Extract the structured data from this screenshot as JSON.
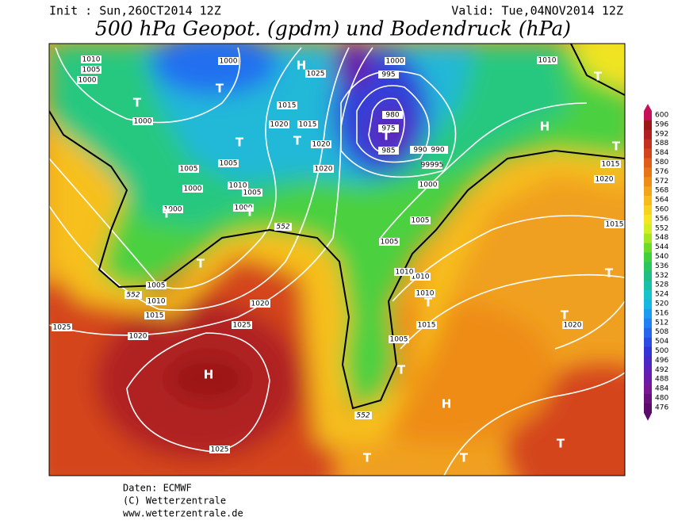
{
  "header": {
    "init": "Init : Sun,26OCT2014 12Z",
    "valid": "Valid: Tue,04NOV2014 12Z"
  },
  "title": "500 hPa Geopot. (gpdm) und Bodendruck (hPa)",
  "colorbar": {
    "levels": [
      600,
      596,
      592,
      588,
      584,
      580,
      576,
      572,
      568,
      564,
      560,
      556,
      552,
      548,
      544,
      540,
      536,
      532,
      528,
      524,
      520,
      516,
      512,
      508,
      504,
      500,
      496,
      492,
      488,
      484,
      480,
      476
    ],
    "colors": [
      "#c8105a",
      "#9c1818",
      "#b02020",
      "#c4301e",
      "#d4441c",
      "#e05c1a",
      "#e87418",
      "#ee8c18",
      "#f4a41a",
      "#f7bc1c",
      "#f9d220",
      "#f4e622",
      "#d4ee24",
      "#a4e620",
      "#6cdc28",
      "#40d03c",
      "#2ac660",
      "#1ebe86",
      "#18c0aa",
      "#16c4cc",
      "#18b6e2",
      "#1c9cf0",
      "#2080f4",
      "#2666ee",
      "#2c4ae4",
      "#3434d6",
      "#4a28c8",
      "#5e20b8",
      "#6c1aa8",
      "#781694",
      "#6a107c",
      "#5a0c68"
    ]
  },
  "isobar_labels": [
    "1010",
    "1005",
    "1000",
    "1000",
    "1025",
    "1000",
    "995",
    "1010",
    "1000",
    "1015",
    "1020",
    "1015",
    "1020",
    "980",
    "975",
    "985",
    "990",
    "990",
    "99995",
    "1005",
    "1005",
    "1020",
    "1010",
    "1005",
    "1000",
    "1000",
    "1000",
    "1000",
    "1015",
    "1020",
    "1005",
    "1005",
    "1015",
    "1010",
    "1010",
    "1005",
    "1010",
    "1015",
    "1020",
    "1025",
    "1020",
    "1025",
    "1010",
    "1015",
    "1020",
    "1005",
    "1025"
  ],
  "contour_labels": [
    "552",
    "552",
    "552"
  ],
  "centers": [
    "T",
    "T",
    "H",
    "T",
    "T",
    "T",
    "T",
    "T",
    "T",
    "H",
    "T",
    "T",
    "T",
    "T",
    "T",
    "H",
    "T",
    "H",
    "T",
    "T",
    "T"
  ],
  "footer": {
    "lines": [
      "Daten: ECMWF",
      "(C) Wetterzentrale",
      "www.wetterzentrale.de"
    ]
  }
}
